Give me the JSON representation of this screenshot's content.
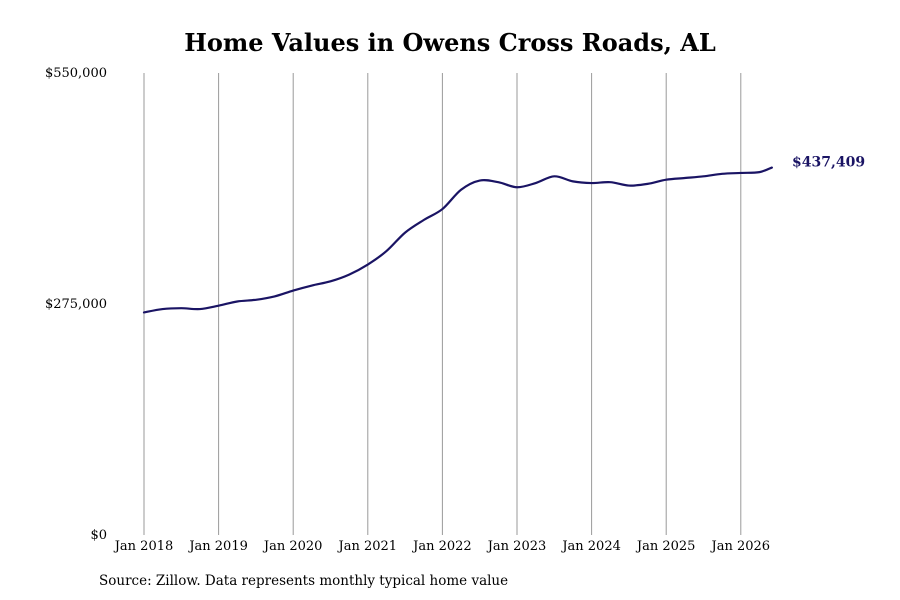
{
  "chart_data": {
    "type": "line",
    "title": "Home Values in Owens Cross Roads, AL",
    "xlabel": "",
    "ylabel": "",
    "x_ticks": [
      "Jan 2018",
      "Jan 2019",
      "Jan 2020",
      "Jan 2021",
      "Jan 2022",
      "Jan 2023",
      "Jan 2024",
      "Jan 2025",
      "Jan 2026"
    ],
    "y_ticks": [
      "$0",
      "$275,000",
      "$550,000"
    ],
    "y_tick_values": [
      0,
      275000,
      550000
    ],
    "ylim": [
      0,
      550000
    ],
    "xlim": [
      "2018-01",
      "2026-06"
    ],
    "grid": {
      "vertical": true,
      "horizontal": false
    },
    "end_label": "$437,409",
    "colors": {
      "line": "#1a1464",
      "grid": "#9a9a9a"
    },
    "series": [
      {
        "x": [
          "2018-01",
          "2018-04",
          "2018-07",
          "2018-10",
          "2019-01",
          "2019-04",
          "2019-07",
          "2019-10",
          "2020-01",
          "2020-04",
          "2020-07",
          "2020-10",
          "2021-01",
          "2021-04",
          "2021-07",
          "2021-10",
          "2022-01",
          "2022-04",
          "2022-07",
          "2022-10",
          "2023-01",
          "2023-04",
          "2023-07",
          "2023-10",
          "2024-01",
          "2024-04",
          "2024-07",
          "2024-10",
          "2025-01",
          "2025-04",
          "2025-07",
          "2025-10",
          "2026-01",
          "2026-04",
          "2026-06"
        ],
        "values": [
          265000,
          269000,
          270000,
          269000,
          273000,
          278000,
          280000,
          284000,
          291000,
          297000,
          302000,
          310000,
          322000,
          338000,
          360000,
          375000,
          388000,
          411000,
          422000,
          420000,
          414000,
          419000,
          427000,
          421000,
          419000,
          420000,
          416000,
          418000,
          423000,
          425000,
          427000,
          430000,
          431000,
          432000,
          437409
        ]
      }
    ]
  },
  "source": "Source: Zillow. Data represents monthly typical home value"
}
